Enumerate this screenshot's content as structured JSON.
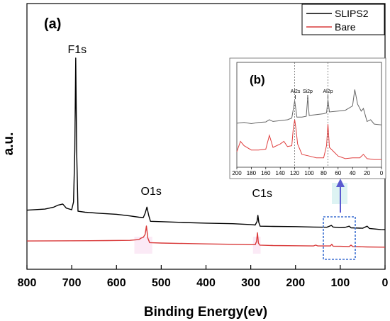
{
  "chart_data": {
    "type": "line",
    "panel_label": "(a)",
    "xlabel": "Binding Energy(ev)",
    "ylabel": "a.u.",
    "xlim": [
      800,
      0
    ],
    "x_ticks": [
      800,
      700,
      600,
      500,
      400,
      300,
      200,
      100,
      0
    ],
    "x_reversed": true,
    "grid": false,
    "legend_position": "top-right",
    "series": [
      {
        "name": "SLIPS2",
        "color": "#000000",
        "points": [
          [
            800,
            0.26
          ],
          [
            760,
            0.265
          ],
          [
            740,
            0.275
          ],
          [
            730,
            0.285
          ],
          [
            720,
            0.29
          ],
          [
            712,
            0.27
          ],
          [
            700,
            0.262
          ],
          [
            696,
            0.3
          ],
          [
            693,
            0.55
          ],
          [
            691,
            1.0
          ],
          [
            689,
            0.55
          ],
          [
            686,
            0.255
          ],
          [
            670,
            0.25
          ],
          [
            640,
            0.245
          ],
          [
            600,
            0.24
          ],
          [
            570,
            0.232
          ],
          [
            550,
            0.226
          ],
          [
            540,
            0.224
          ],
          [
            536,
            0.245
          ],
          [
            532,
            0.275
          ],
          [
            528,
            0.235
          ],
          [
            524,
            0.206
          ],
          [
            500,
            0.204
          ],
          [
            450,
            0.2
          ],
          [
            400,
            0.197
          ],
          [
            340,
            0.194
          ],
          [
            300,
            0.19
          ],
          [
            290,
            0.188
          ],
          [
            286,
            0.205
          ],
          [
            284,
            0.235
          ],
          [
            282,
            0.2
          ],
          [
            279,
            0.182
          ],
          [
            250,
            0.181
          ],
          [
            200,
            0.18
          ],
          [
            160,
            0.178
          ],
          [
            130,
            0.177
          ],
          [
            120,
            0.186
          ],
          [
            116,
            0.178
          ],
          [
            100,
            0.175
          ],
          [
            90,
            0.176
          ],
          [
            80,
            0.182
          ],
          [
            76,
            0.174
          ],
          [
            50,
            0.172
          ],
          [
            40,
            0.182
          ],
          [
            35,
            0.171
          ],
          [
            20,
            0.168
          ],
          [
            10,
            0.166
          ],
          [
            0,
            0.165
          ]
        ]
      },
      {
        "name": "Bare",
        "color": "#d93a3a",
        "points": [
          [
            800,
            0.11
          ],
          [
            700,
            0.111
          ],
          [
            620,
            0.112
          ],
          [
            570,
            0.113
          ],
          [
            550,
            0.117
          ],
          [
            545,
            0.124
          ],
          [
            540,
            0.128
          ],
          [
            536,
            0.142
          ],
          [
            533,
            0.183
          ],
          [
            530,
            0.125
          ],
          [
            526,
            0.102
          ],
          [
            500,
            0.1
          ],
          [
            450,
            0.098
          ],
          [
            400,
            0.096
          ],
          [
            350,
            0.094
          ],
          [
            300,
            0.092
          ],
          [
            290,
            0.092
          ],
          [
            287,
            0.108
          ],
          [
            285,
            0.15
          ],
          [
            283,
            0.1
          ],
          [
            280,
            0.09
          ],
          [
            250,
            0.088
          ],
          [
            200,
            0.087
          ],
          [
            160,
            0.086
          ],
          [
            155,
            0.09
          ],
          [
            150,
            0.086
          ],
          [
            122,
            0.086
          ],
          [
            119,
            0.094
          ],
          [
            116,
            0.085
          ],
          [
            100,
            0.084
          ],
          [
            80,
            0.083
          ],
          [
            76,
            0.09
          ],
          [
            72,
            0.083
          ],
          [
            40,
            0.081
          ],
          [
            0,
            0.08
          ]
        ]
      }
    ],
    "peak_labels": [
      {
        "text": "F1s",
        "x": 691
      },
      {
        "text": "O1s",
        "x": 532
      },
      {
        "text": "C1s",
        "x": 284
      }
    ],
    "inset": {
      "panel_label": "(b)",
      "x_ticks": [
        200,
        180,
        160,
        140,
        120,
        100,
        80,
        60,
        40,
        20,
        0
      ],
      "xlim": [
        200,
        0
      ],
      "annotations": [
        {
          "text": "Al2s",
          "x": 119
        },
        {
          "text": "Si2p",
          "x": 102
        },
        {
          "text": "Al2p",
          "x": 74
        }
      ],
      "dashed_lines_x": [
        120,
        74
      ],
      "series": [
        {
          "color": "#666666",
          "points": [
            [
              200,
              0.46
            ],
            [
              190,
              0.47
            ],
            [
              180,
              0.455
            ],
            [
              170,
              0.47
            ],
            [
              160,
              0.475
            ],
            [
              155,
              0.5
            ],
            [
              150,
              0.48
            ],
            [
              140,
              0.49
            ],
            [
              130,
              0.5
            ],
            [
              124,
              0.52
            ],
            [
              120,
              0.72
            ],
            [
              117,
              0.53
            ],
            [
              110,
              0.53
            ],
            [
              104,
              0.54
            ],
            [
              102,
              0.76
            ],
            [
              100,
              0.55
            ],
            [
              90,
              0.56
            ],
            [
              80,
              0.57
            ],
            [
              76,
              0.58
            ],
            [
              74,
              0.73
            ],
            [
              72,
              0.59
            ],
            [
              60,
              0.6
            ],
            [
              50,
              0.61
            ],
            [
              40,
              0.66
            ],
            [
              37,
              0.85
            ],
            [
              33,
              0.68
            ],
            [
              28,
              0.6
            ],
            [
              25,
              0.63
            ],
            [
              20,
              0.48
            ],
            [
              15,
              0.5
            ],
            [
              10,
              0.45
            ],
            [
              0,
              0.44
            ]
          ]
        },
        {
          "color": "#e04040",
          "points": [
            [
              200,
              0.13
            ],
            [
              195,
              0.25
            ],
            [
              190,
              0.2
            ],
            [
              180,
              0.15
            ],
            [
              170,
              0.15
            ],
            [
              160,
              0.16
            ],
            [
              155,
              0.32
            ],
            [
              150,
              0.18
            ],
            [
              140,
              0.22
            ],
            [
              135,
              0.25
            ],
            [
              130,
              0.19
            ],
            [
              124,
              0.2
            ],
            [
              122,
              0.4
            ],
            [
              120,
              0.5
            ],
            [
              118,
              0.38
            ],
            [
              116,
              0.22
            ],
            [
              110,
              0.1
            ],
            [
              100,
              0.08
            ],
            [
              90,
              0.06
            ],
            [
              80,
              0.06
            ],
            [
              76,
              0.2
            ],
            [
              74,
              0.45
            ],
            [
              72,
              0.18
            ],
            [
              60,
              0.08
            ],
            [
              50,
              0.05
            ],
            [
              40,
              0.06
            ],
            [
              30,
              0.06
            ],
            [
              25,
              0.1
            ],
            [
              20,
              0.05
            ],
            [
              10,
              0.04
            ],
            [
              0,
              0.04
            ]
          ]
        }
      ]
    }
  }
}
